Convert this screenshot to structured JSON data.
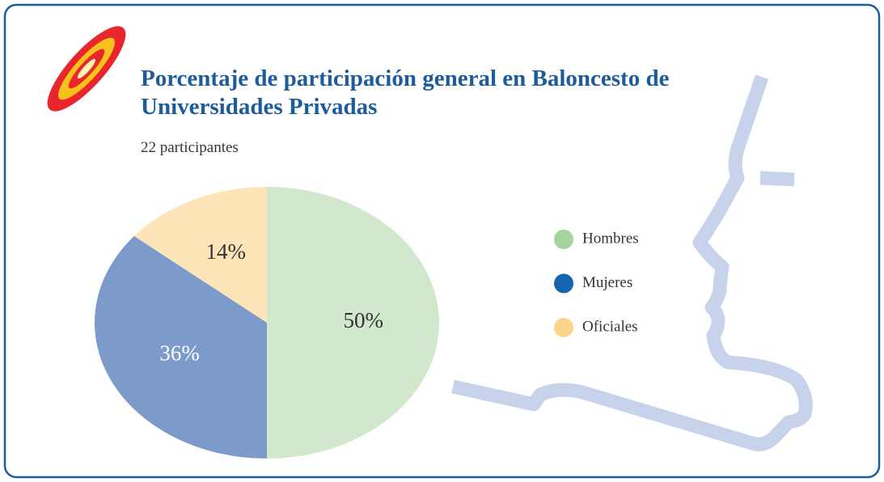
{
  "chart_data": {
    "type": "pie",
    "title": "Porcentaje de participación general en Baloncesto de Universidades Privadas",
    "subtitle": "22 participantes",
    "categories": [
      "Hombres",
      "Mujeres",
      "Oficiales"
    ],
    "values": [
      50,
      36,
      14
    ],
    "value_labels": [
      "50%",
      "36%",
      "14%"
    ],
    "colors": [
      "#d2e8cd",
      "#7c9bcb",
      "#fde5b9"
    ],
    "legend_colors": [
      "#a2d49b",
      "#1464b0",
      "#fdd48b"
    ],
    "label_colors": [
      "#333333",
      "#ffffff",
      "#333333"
    ]
  }
}
